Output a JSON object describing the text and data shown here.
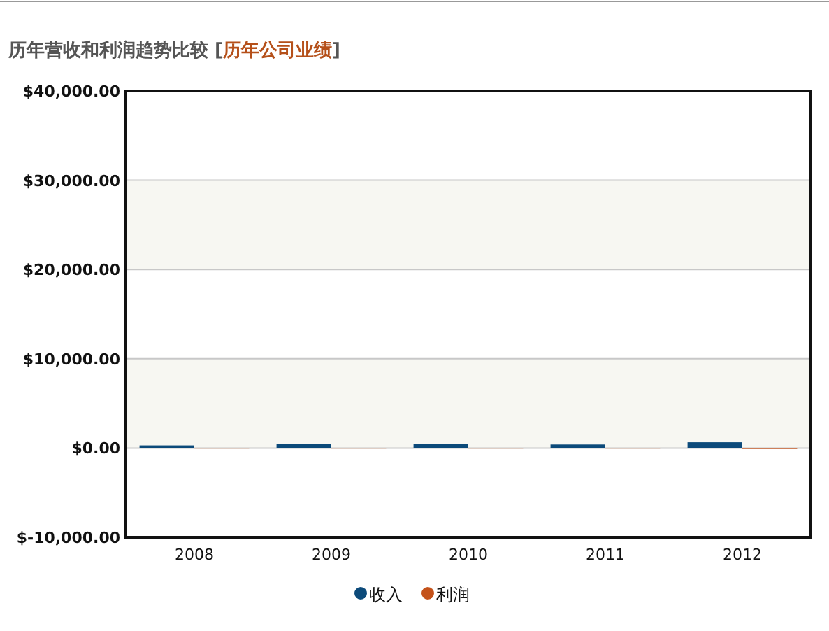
{
  "chart_data": {
    "type": "bar",
    "title": "历年营收和利润趋势比较",
    "subtitle": "[历年公司业绩]",
    "categories": [
      "2008",
      "2009",
      "2010",
      "2011",
      "2012"
    ],
    "series": [
      {
        "name": "收入",
        "color": "#0c4a7a",
        "values": [
          300,
          450,
          450,
          400,
          650
        ]
      },
      {
        "name": "利润",
        "color": "#c4521a",
        "values": [
          20,
          20,
          20,
          20,
          -100
        ]
      }
    ],
    "ylim": [
      -10000,
      40000
    ],
    "yticks": [
      {
        "value": -10000,
        "label": "$-10,000.00"
      },
      {
        "value": 0,
        "label": "$0.00"
      },
      {
        "value": 10000,
        "label": "$10,000.00"
      },
      {
        "value": 20000,
        "label": "$20,000.00"
      },
      {
        "value": 30000,
        "label": "$30,000.00"
      },
      {
        "value": 40000,
        "label": "$40,000.00"
      }
    ],
    "grid": "y",
    "legend": "bottom"
  }
}
